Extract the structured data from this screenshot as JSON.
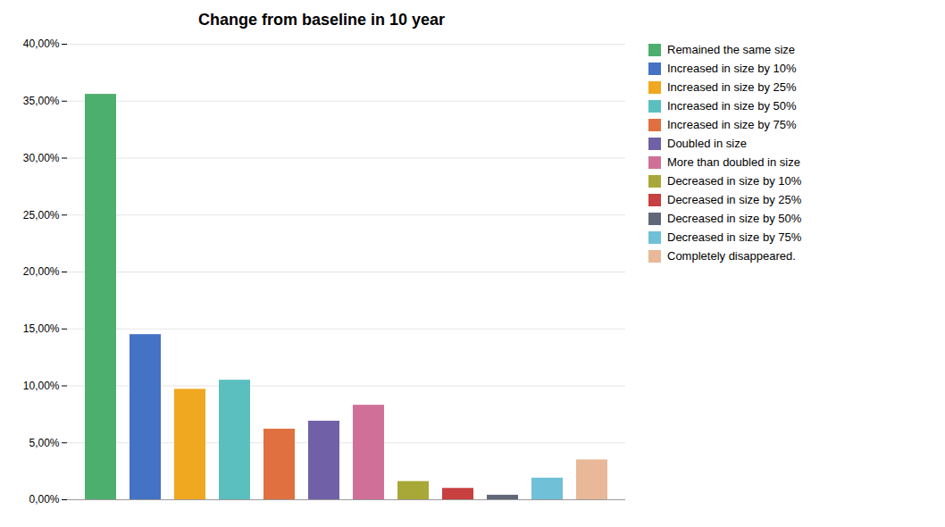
{
  "chart_data": {
    "type": "bar",
    "title": "Change from baseline in 10 year",
    "categories": [
      "Remained the same size",
      "Increased in size by 10%",
      "Increased in size by 25%",
      "Increased in size by 50%",
      "Increased in size by 75%",
      "Doubled in size",
      "More than doubled in size",
      "Decreased in size by 10%",
      "Decreased in size by 25%",
      "Decreased in size by 50%",
      "Decreased in size by 75%",
      "Completely disappeared."
    ],
    "values": [
      35.6,
      14.5,
      9.7,
      10.5,
      6.2,
      6.9,
      8.3,
      1.6,
      1.0,
      0.4,
      1.9,
      3.5
    ],
    "colors": [
      "#4daf6e",
      "#4472c4",
      "#f0a820",
      "#5bbfbf",
      "#e07040",
      "#7060a8",
      "#d07098",
      "#a8a838",
      "#c84040",
      "#606878",
      "#70c0d8",
      "#e8b898"
    ],
    "ylim": [
      0,
      40
    ],
    "yticks": [
      {
        "value": 0,
        "label": "0,00%"
      },
      {
        "value": 5,
        "label": "5,00%"
      },
      {
        "value": 10,
        "label": "10,00%"
      },
      {
        "value": 15,
        "label": "15,00%"
      },
      {
        "value": 20,
        "label": "20,00%"
      },
      {
        "value": 25,
        "label": "25,00%"
      },
      {
        "value": 30,
        "label": "30,00%"
      },
      {
        "value": 35,
        "label": "35,00%"
      },
      {
        "value": 40,
        "label": "40,00%"
      }
    ],
    "grid": true,
    "legend": "right",
    "tick_labels": "y"
  }
}
